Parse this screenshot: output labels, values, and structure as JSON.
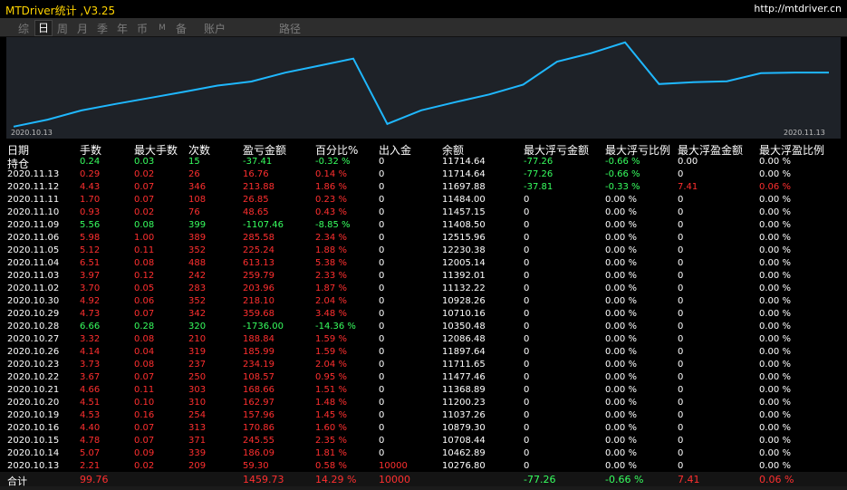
{
  "window": {
    "title": "MTDriver统计 ,V3.25",
    "url": "http://mtdriver.cn"
  },
  "tabs": [
    "综",
    "日",
    "周",
    "月",
    "季",
    "年",
    "币",
    "M",
    "备",
    "账户"
  ],
  "active_tab_index": 1,
  "path_label": "路径",
  "chart": {
    "start_date": "2020.10.13",
    "end_date": "2020.11.13",
    "line_color": "#1fb8ff",
    "background": "#1e2228",
    "balance_series": [
      10276.8,
      10462.89,
      10708.44,
      10879.3,
      11037.26,
      11200.23,
      11368.89,
      11477.46,
      11711.65,
      11897.64,
      12086.48,
      10350.48,
      10710.16,
      10928.26,
      11132.22,
      11392.01,
      12005.14,
      12230.38,
      12515.96,
      11408.5,
      11457.15,
      11484.0,
      11697.88,
      11714.64,
      11714.64
    ]
  },
  "table": {
    "headers": [
      "日期",
      "手数",
      "最大手数",
      "次数",
      "盈亏金额",
      "百分比%",
      "出入金",
      "余额",
      "最大浮亏金额",
      "最大浮亏比例",
      "最大浮盈金额",
      "最大浮盈比例"
    ],
    "rows": [
      {
        "date": "持仓",
        "lots": "0.24",
        "max_lots": "0.03",
        "count": "15",
        "pnl": "-37.41",
        "pct": "-0.32 %",
        "io": "0",
        "balance": "11714.64",
        "float_loss": "-77.26",
        "float_loss_pct": "-0.66 %",
        "float_win": "0.00",
        "float_win_pct": "0.00 %",
        "color": "green",
        "date_color": "white",
        "fl_color": "green",
        "flp_color": "green",
        "fw_color": "white"
      },
      {
        "date": "2020.11.13",
        "lots": "0.29",
        "max_lots": "0.02",
        "count": "26",
        "pnl": "16.76",
        "pct": "0.14 %",
        "io": "0",
        "balance": "11714.64",
        "float_loss": "-77.26",
        "float_loss_pct": "-0.66 %",
        "float_win": "0",
        "float_win_pct": "0.00 %",
        "color": "red",
        "date_color": "white",
        "fl_color": "green",
        "flp_color": "green",
        "fw_color": "white"
      },
      {
        "date": "2020.11.12",
        "lots": "4.43",
        "max_lots": "0.07",
        "count": "346",
        "pnl": "213.88",
        "pct": "1.86 %",
        "io": "0",
        "balance": "11697.88",
        "float_loss": "-37.81",
        "float_loss_pct": "-0.33 %",
        "float_win": "7.41",
        "float_win_pct": "0.06 %",
        "color": "red",
        "date_color": "white",
        "fl_color": "green",
        "flp_color": "green",
        "fw_color": "red"
      },
      {
        "date": "2020.11.11",
        "lots": "1.70",
        "max_lots": "0.07",
        "count": "108",
        "pnl": "26.85",
        "pct": "0.23 %",
        "io": "0",
        "balance": "11484.00",
        "float_loss": "0",
        "float_loss_pct": "0.00 %",
        "float_win": "0",
        "float_win_pct": "0.00 %",
        "color": "red",
        "date_color": "white",
        "fl_color": "white",
        "flp_color": "white",
        "fw_color": "white"
      },
      {
        "date": "2020.11.10",
        "lots": "0.93",
        "max_lots": "0.02",
        "count": "76",
        "pnl": "48.65",
        "pct": "0.43 %",
        "io": "0",
        "balance": "11457.15",
        "float_loss": "0",
        "float_loss_pct": "0.00 %",
        "float_win": "0",
        "float_win_pct": "0.00 %",
        "color": "red",
        "date_color": "white",
        "fl_color": "white",
        "flp_color": "white",
        "fw_color": "white"
      },
      {
        "date": "2020.11.09",
        "lots": "5.56",
        "max_lots": "0.08",
        "count": "399",
        "pnl": "-1107.46",
        "pct": "-8.85 %",
        "io": "0",
        "balance": "11408.50",
        "float_loss": "0",
        "float_loss_pct": "0.00 %",
        "float_win": "0",
        "float_win_pct": "0.00 %",
        "color": "green",
        "date_color": "white",
        "fl_color": "white",
        "flp_color": "white",
        "fw_color": "white"
      },
      {
        "date": "2020.11.06",
        "lots": "5.98",
        "max_lots": "1.00",
        "count": "389",
        "pnl": "285.58",
        "pct": "2.34 %",
        "io": "0",
        "balance": "12515.96",
        "float_loss": "0",
        "float_loss_pct": "0.00 %",
        "float_win": "0",
        "float_win_pct": "0.00 %",
        "color": "red",
        "date_color": "white",
        "fl_color": "white",
        "flp_color": "white",
        "fw_color": "white"
      },
      {
        "date": "2020.11.05",
        "lots": "5.12",
        "max_lots": "0.11",
        "count": "352",
        "pnl": "225.24",
        "pct": "1.88 %",
        "io": "0",
        "balance": "12230.38",
        "float_loss": "0",
        "float_loss_pct": "0.00 %",
        "float_win": "0",
        "float_win_pct": "0.00 %",
        "color": "red",
        "date_color": "white",
        "fl_color": "white",
        "flp_color": "white",
        "fw_color": "white"
      },
      {
        "date": "2020.11.04",
        "lots": "6.51",
        "max_lots": "0.08",
        "count": "488",
        "pnl": "613.13",
        "pct": "5.38 %",
        "io": "0",
        "balance": "12005.14",
        "float_loss": "0",
        "float_loss_pct": "0.00 %",
        "float_win": "0",
        "float_win_pct": "0.00 %",
        "color": "red",
        "date_color": "white",
        "fl_color": "white",
        "flp_color": "white",
        "fw_color": "white"
      },
      {
        "date": "2020.11.03",
        "lots": "3.97",
        "max_lots": "0.12",
        "count": "242",
        "pnl": "259.79",
        "pct": "2.33 %",
        "io": "0",
        "balance": "11392.01",
        "float_loss": "0",
        "float_loss_pct": "0.00 %",
        "float_win": "0",
        "float_win_pct": "0.00 %",
        "color": "red",
        "date_color": "white",
        "fl_color": "white",
        "flp_color": "white",
        "fw_color": "white"
      },
      {
        "date": "2020.11.02",
        "lots": "3.70",
        "max_lots": "0.05",
        "count": "283",
        "pnl": "203.96",
        "pct": "1.87 %",
        "io": "0",
        "balance": "11132.22",
        "float_loss": "0",
        "float_loss_pct": "0.00 %",
        "float_win": "0",
        "float_win_pct": "0.00 %",
        "color": "red",
        "date_color": "white",
        "fl_color": "white",
        "flp_color": "white",
        "fw_color": "white"
      },
      {
        "date": "2020.10.30",
        "lots": "4.92",
        "max_lots": "0.06",
        "count": "352",
        "pnl": "218.10",
        "pct": "2.04 %",
        "io": "0",
        "balance": "10928.26",
        "float_loss": "0",
        "float_loss_pct": "0.00 %",
        "float_win": "0",
        "float_win_pct": "0.00 %",
        "color": "red",
        "date_color": "white",
        "fl_color": "white",
        "flp_color": "white",
        "fw_color": "white"
      },
      {
        "date": "2020.10.29",
        "lots": "4.73",
        "max_lots": "0.07",
        "count": "342",
        "pnl": "359.68",
        "pct": "3.48 %",
        "io": "0",
        "balance": "10710.16",
        "float_loss": "0",
        "float_loss_pct": "0.00 %",
        "float_win": "0",
        "float_win_pct": "0.00 %",
        "color": "red",
        "date_color": "white",
        "fl_color": "white",
        "flp_color": "white",
        "fw_color": "white"
      },
      {
        "date": "2020.10.28",
        "lots": "6.66",
        "max_lots": "0.28",
        "count": "320",
        "pnl": "-1736.00",
        "pct": "-14.36 %",
        "io": "0",
        "balance": "10350.48",
        "float_loss": "0",
        "float_loss_pct": "0.00 %",
        "float_win": "0",
        "float_win_pct": "0.00 %",
        "color": "green",
        "date_color": "white",
        "fl_color": "white",
        "flp_color": "white",
        "fw_color": "white"
      },
      {
        "date": "2020.10.27",
        "lots": "3.32",
        "max_lots": "0.08",
        "count": "210",
        "pnl": "188.84",
        "pct": "1.59 %",
        "io": "0",
        "balance": "12086.48",
        "float_loss": "0",
        "float_loss_pct": "0.00 %",
        "float_win": "0",
        "float_win_pct": "0.00 %",
        "color": "red",
        "date_color": "white",
        "fl_color": "white",
        "flp_color": "white",
        "fw_color": "white"
      },
      {
        "date": "2020.10.26",
        "lots": "4.14",
        "max_lots": "0.04",
        "count": "319",
        "pnl": "185.99",
        "pct": "1.59 %",
        "io": "0",
        "balance": "11897.64",
        "float_loss": "0",
        "float_loss_pct": "0.00 %",
        "float_win": "0",
        "float_win_pct": "0.00 %",
        "color": "red",
        "date_color": "white",
        "fl_color": "white",
        "flp_color": "white",
        "fw_color": "white"
      },
      {
        "date": "2020.10.23",
        "lots": "3.73",
        "max_lots": "0.08",
        "count": "237",
        "pnl": "234.19",
        "pct": "2.04 %",
        "io": "0",
        "balance": "11711.65",
        "float_loss": "0",
        "float_loss_pct": "0.00 %",
        "float_win": "0",
        "float_win_pct": "0.00 %",
        "color": "red",
        "date_color": "white",
        "fl_color": "white",
        "flp_color": "white",
        "fw_color": "white"
      },
      {
        "date": "2020.10.22",
        "lots": "3.67",
        "max_lots": "0.07",
        "count": "250",
        "pnl": "108.57",
        "pct": "0.95 %",
        "io": "0",
        "balance": "11477.46",
        "float_loss": "0",
        "float_loss_pct": "0.00 %",
        "float_win": "0",
        "float_win_pct": "0.00 %",
        "color": "red",
        "date_color": "white",
        "fl_color": "white",
        "flp_color": "white",
        "fw_color": "white"
      },
      {
        "date": "2020.10.21",
        "lots": "4.66",
        "max_lots": "0.11",
        "count": "303",
        "pnl": "168.66",
        "pct": "1.51 %",
        "io": "0",
        "balance": "11368.89",
        "float_loss": "0",
        "float_loss_pct": "0.00 %",
        "float_win": "0",
        "float_win_pct": "0.00 %",
        "color": "red",
        "date_color": "white",
        "fl_color": "white",
        "flp_color": "white",
        "fw_color": "white"
      },
      {
        "date": "2020.10.20",
        "lots": "4.51",
        "max_lots": "0.10",
        "count": "310",
        "pnl": "162.97",
        "pct": "1.48 %",
        "io": "0",
        "balance": "11200.23",
        "float_loss": "0",
        "float_loss_pct": "0.00 %",
        "float_win": "0",
        "float_win_pct": "0.00 %",
        "color": "red",
        "date_color": "white",
        "fl_color": "white",
        "flp_color": "white",
        "fw_color": "white"
      },
      {
        "date": "2020.10.19",
        "lots": "4.53",
        "max_lots": "0.16",
        "count": "254",
        "pnl": "157.96",
        "pct": "1.45 %",
        "io": "0",
        "balance": "11037.26",
        "float_loss": "0",
        "float_loss_pct": "0.00 %",
        "float_win": "0",
        "float_win_pct": "0.00 %",
        "color": "red",
        "date_color": "white",
        "fl_color": "white",
        "flp_color": "white",
        "fw_color": "white"
      },
      {
        "date": "2020.10.16",
        "lots": "4.40",
        "max_lots": "0.07",
        "count": "313",
        "pnl": "170.86",
        "pct": "1.60 %",
        "io": "0",
        "balance": "10879.30",
        "float_loss": "0",
        "float_loss_pct": "0.00 %",
        "float_win": "0",
        "float_win_pct": "0.00 %",
        "color": "red",
        "date_color": "white",
        "fl_color": "white",
        "flp_color": "white",
        "fw_color": "white"
      },
      {
        "date": "2020.10.15",
        "lots": "4.78",
        "max_lots": "0.07",
        "count": "371",
        "pnl": "245.55",
        "pct": "2.35 %",
        "io": "0",
        "balance": "10708.44",
        "float_loss": "0",
        "float_loss_pct": "0.00 %",
        "float_win": "0",
        "float_win_pct": "0.00 %",
        "color": "red",
        "date_color": "white",
        "fl_color": "white",
        "flp_color": "white",
        "fw_color": "white"
      },
      {
        "date": "2020.10.14",
        "lots": "5.07",
        "max_lots": "0.09",
        "count": "339",
        "pnl": "186.09",
        "pct": "1.81 %",
        "io": "0",
        "balance": "10462.89",
        "float_loss": "0",
        "float_loss_pct": "0.00 %",
        "float_win": "0",
        "float_win_pct": "0.00 %",
        "color": "red",
        "date_color": "white",
        "fl_color": "white",
        "flp_color": "white",
        "fw_color": "white"
      },
      {
        "date": "2020.10.13",
        "lots": "2.21",
        "max_lots": "0.02",
        "count": "209",
        "pnl": "59.30",
        "pct": "0.58 %",
        "io": "10000",
        "balance": "10276.80",
        "float_loss": "0",
        "float_loss_pct": "0.00 %",
        "float_win": "0",
        "float_win_pct": "0.00 %",
        "color": "red",
        "date_color": "white",
        "fl_color": "white",
        "flp_color": "white",
        "fw_color": "white",
        "io_color": "red"
      }
    ],
    "total": {
      "label": "合计",
      "lots": "99.76",
      "pnl": "1459.73",
      "pct": "14.29 %",
      "io": "10000",
      "float_loss": "-77.26",
      "float_loss_pct": "-0.66 %",
      "float_win": "7.41",
      "float_win_pct": "0.06 %"
    }
  }
}
